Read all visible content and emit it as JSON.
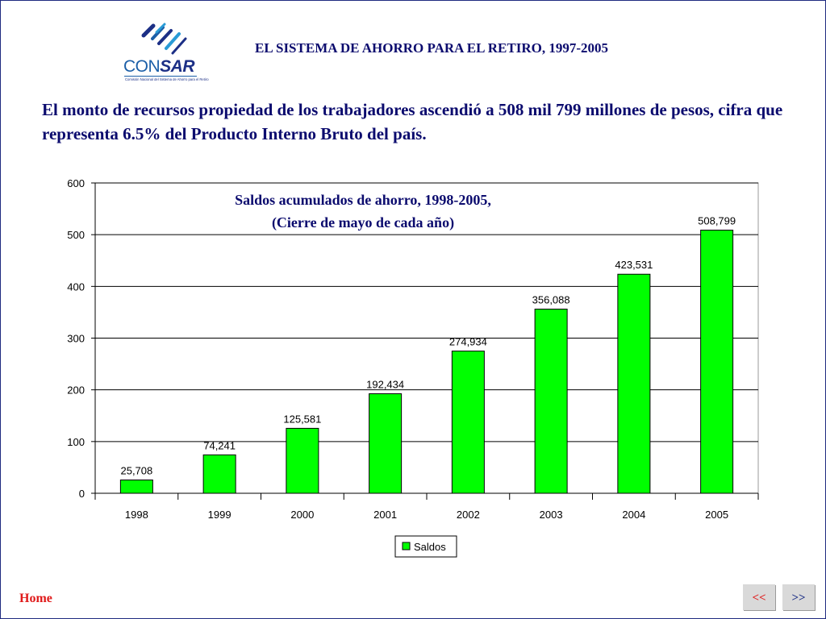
{
  "logo": {
    "text_con": "CON",
    "text_sar": "SAR",
    "subtitle": "Comisión Nacional del Sistema de Ahorro para el Retiro"
  },
  "page": {
    "title": "EL SISTEMA DE AHORRO PARA EL RETIRO, 1997-2005",
    "intro": "El monto de recursos propiedad de los trabajadores ascendió a 508 mil 799 millones de pesos, cifra que representa 6.5% del Producto Interno Bruto del país."
  },
  "chart_data": {
    "type": "bar",
    "title_line1": "Saldos acumulados de ahorro, 1998-2005,",
    "title_line2": "(Cierre de mayo de cada año)",
    "categories": [
      "1998",
      "1999",
      "2000",
      "2001",
      "2002",
      "2003",
      "2004",
      "2005"
    ],
    "series": [
      {
        "name": "Saldos",
        "values": [
          25.708,
          74.241,
          125.581,
          192.434,
          274.934,
          356.088,
          423.531,
          508.799
        ],
        "data_labels": [
          "25,708",
          "74,241",
          "125,581",
          "192,434",
          "274,934",
          "356,088",
          "423,531",
          "508,799"
        ],
        "color": "#00ff00"
      }
    ],
    "ylim": [
      0,
      600
    ],
    "yticks": [
      "0",
      "100",
      "200",
      "300",
      "400",
      "500",
      "600"
    ],
    "grid": true,
    "legend_position": "bottom"
  },
  "nav": {
    "home": "Home",
    "prev": "<<",
    "next": ">>"
  }
}
